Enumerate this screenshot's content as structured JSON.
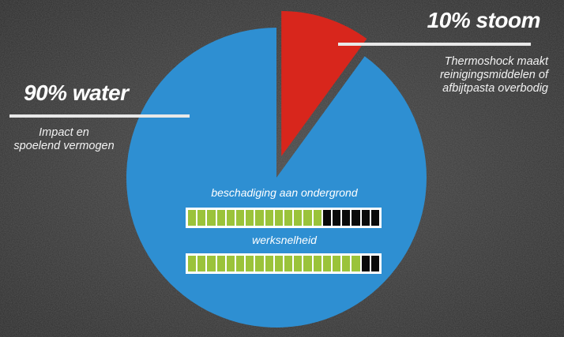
{
  "chart_data": {
    "type": "pie",
    "slices": [
      {
        "name": "water",
        "value": 90,
        "color": "#2e8fd2"
      },
      {
        "name": "stoom",
        "value": 10,
        "color": "#d8261c"
      }
    ],
    "colors": {
      "water": "#2e8fd2",
      "stoom": "#d8261c"
    },
    "annotations": [
      {
        "key": "water",
        "title": "90% water",
        "text": [
          "Impact en",
          "spoelend vermogen"
        ]
      },
      {
        "key": "stoom",
        "title": "10% stoom",
        "text": [
          "Thermoshock maakt",
          "reinigingsmiddelen of",
          "afbijtpasta overbodig"
        ]
      }
    ]
  },
  "meters": [
    {
      "label": "beschadiging aan ondergrond",
      "filled": 14,
      "total": 20
    },
    {
      "label": "werksnelheid",
      "filled": 18,
      "total": 20
    }
  ],
  "meter_colors": {
    "on": "#9bc33a",
    "off": "#0a0a0a"
  }
}
